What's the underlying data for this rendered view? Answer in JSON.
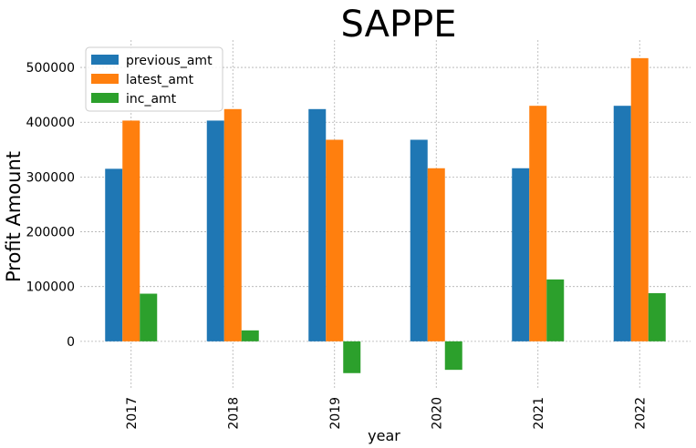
{
  "chart_data": {
    "type": "bar",
    "title": "SAPPE",
    "xlabel": "year",
    "ylabel": "Profit Amount",
    "categories": [
      "2017",
      "2018",
      "2019",
      "2020",
      "2021",
      "2022"
    ],
    "series": [
      {
        "name": "previous_amt",
        "color": "#1f77b4",
        "values": [
          315000,
          403000,
          424000,
          368000,
          316000,
          430000
        ]
      },
      {
        "name": "latest_amt",
        "color": "#ff7f0e",
        "values": [
          403000,
          424000,
          368000,
          316000,
          430000,
          517000
        ]
      },
      {
        "name": "inc_amt",
        "color": "#2ca02c",
        "values": [
          87000,
          20000,
          -58000,
          -52000,
          113000,
          88000
        ]
      }
    ],
    "ylim": [
      -85000,
      550000
    ],
    "yticks": [
      0,
      100000,
      200000,
      300000,
      400000,
      500000
    ],
    "ytick_labels": [
      "0",
      "100000",
      "200000",
      "300000",
      "400000",
      "500000"
    ],
    "grid": true,
    "legend_position": "top-left"
  }
}
